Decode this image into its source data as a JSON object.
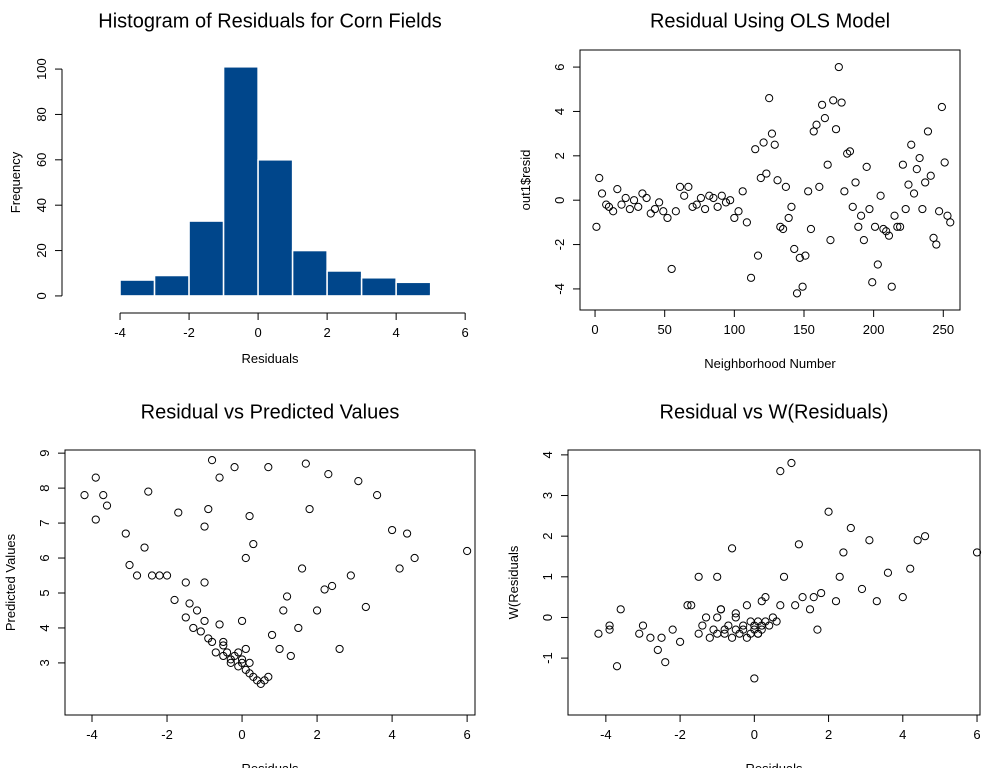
{
  "chart_data": [
    {
      "type": "histogram",
      "title": "Histogram of Residuals for Corn Fields",
      "xlabel": "Residuals",
      "ylabel": "Frequency",
      "bins": [
        -5,
        -4,
        -3,
        -2,
        -1,
        0,
        1,
        2,
        3,
        4,
        5,
        6
      ],
      "values": [
        0,
        7,
        9,
        33,
        101,
        60,
        20,
        11,
        8,
        6,
        0
      ],
      "color": "#00468b",
      "xlim": [
        -5.45,
        6.14
      ],
      "ylim": [
        -4,
        104
      ],
      "xticks": [
        -4,
        -2,
        0,
        2,
        4,
        6
      ],
      "yticks": [
        0,
        20,
        40,
        60,
        80,
        100
      ]
    },
    {
      "type": "scatter",
      "title": "Residual Using OLS Model",
      "xlabel": "Neighborhood Number",
      "ylabel": "out1$resid",
      "color": "#000000",
      "x": [
        1,
        3,
        5,
        8,
        10,
        13,
        16,
        19,
        22,
        25,
        28,
        31,
        34,
        37,
        40,
        43,
        46,
        49,
        52,
        55,
        58,
        61,
        64,
        67,
        70,
        73,
        76,
        79,
        82,
        85,
        88,
        91,
        94,
        97,
        100,
        103,
        106,
        109,
        112,
        115,
        117,
        119,
        121,
        123,
        125,
        127,
        129,
        131,
        133,
        135,
        137,
        139,
        141,
        143,
        145,
        147,
        149,
        151,
        153,
        155,
        157,
        159,
        161,
        163,
        165,
        167,
        169,
        171,
        173,
        175,
        177,
        179,
        181,
        183,
        185,
        187,
        189,
        191,
        193,
        195,
        197,
        199,
        201,
        203,
        205,
        207,
        209,
        211,
        213,
        215,
        217,
        219,
        221,
        223,
        225,
        227,
        229,
        231,
        233,
        235,
        237,
        239,
        241,
        243,
        245,
        247,
        249,
        251,
        253,
        255
      ],
      "values": [
        -1.2,
        1.0,
        0.3,
        -0.2,
        -0.3,
        -0.5,
        0.5,
        -0.2,
        0.1,
        -0.4,
        0.0,
        -0.3,
        0.3,
        0.1,
        -0.6,
        -0.4,
        -0.1,
        -0.5,
        -0.8,
        -3.1,
        -0.5,
        0.6,
        0.2,
        0.6,
        -0.3,
        -0.2,
        0.1,
        -0.4,
        0.2,
        0.1,
        -0.3,
        0.2,
        -0.1,
        0.0,
        -0.8,
        -0.5,
        0.4,
        -1.0,
        -3.5,
        2.3,
        -2.5,
        1.0,
        2.6,
        1.2,
        4.6,
        3.0,
        2.5,
        0.9,
        -1.2,
        -1.3,
        0.6,
        -0.8,
        -0.3,
        -2.2,
        -4.2,
        -2.6,
        -3.9,
        -2.5,
        0.4,
        -1.3,
        3.1,
        3.4,
        0.6,
        4.3,
        3.7,
        1.6,
        -1.8,
        4.5,
        3.2,
        6.0,
        4.4,
        0.4,
        2.1,
        2.2,
        -0.3,
        0.8,
        -1.2,
        -0.7,
        -1.8,
        1.5,
        -0.4,
        -3.7,
        -1.2,
        -2.9,
        0.2,
        -1.3,
        -1.4,
        -1.6,
        -3.9,
        -0.7,
        -1.2,
        -1.2,
        1.6,
        -0.4,
        0.7,
        2.5,
        0.3,
        1.4,
        1.9,
        -0.4,
        0.8,
        3.1,
        1.1,
        -1.7,
        -2.0,
        -0.5,
        4.2,
        1.7,
        -0.7,
        -1.0
      ],
      "xlim": [
        -10.8,
        262
      ],
      "ylim": [
        -4.95,
        6.77
      ],
      "xticks": [
        0,
        50,
        100,
        150,
        200,
        250
      ],
      "yticks": [
        -4,
        -2,
        0,
        2,
        4,
        6
      ]
    },
    {
      "type": "scatter",
      "title": "Residual vs Predicted Values",
      "xlabel": "Residuals",
      "ylabel": "Predicted Values",
      "color": "#000000",
      "x": [
        -4.2,
        -3.9,
        -3.7,
        -3.6,
        -3.9,
        -3.1,
        -3.0,
        -2.5,
        -2.6,
        -2.4,
        -2.2,
        -2.0,
        -1.8,
        -1.7,
        -1.5,
        -1.4,
        -1.3,
        -1.2,
        -1.1,
        -1.0,
        -1.0,
        -0.9,
        -0.8,
        -0.8,
        -0.7,
        -0.6,
        -0.5,
        -0.5,
        -0.4,
        -0.3,
        -0.3,
        -0.2,
        -0.1,
        -0.1,
        0.0,
        0.0,
        0.1,
        0.1,
        0.2,
        0.2,
        0.3,
        0.3,
        0.4,
        0.5,
        0.6,
        0.7,
        0.8,
        1.0,
        1.1,
        1.2,
        1.3,
        1.5,
        1.6,
        1.8,
        2.0,
        2.2,
        2.4,
        2.6,
        2.9,
        3.1,
        3.3,
        3.6,
        4.0,
        4.2,
        4.4,
        4.6,
        6.0,
        -1.0,
        -0.6,
        -0.2,
        0.1,
        0.0,
        -0.5,
        1.7,
        2.3,
        -1.5,
        0.7,
        -2.8,
        -0.9,
        0.2
      ],
      "values": [
        7.8,
        8.3,
        7.8,
        7.5,
        7.1,
        6.7,
        5.8,
        7.9,
        6.3,
        5.5,
        5.5,
        5.5,
        4.8,
        7.3,
        4.3,
        4.7,
        4.0,
        4.5,
        3.9,
        5.3,
        4.2,
        3.7,
        8.8,
        3.6,
        3.3,
        4.1,
        3.2,
        3.5,
        3.3,
        3.1,
        3.0,
        3.2,
        2.9,
        3.3,
        3.0,
        3.1,
        2.8,
        3.4,
        2.7,
        3.0,
        2.6,
        6.4,
        2.5,
        2.4,
        2.5,
        2.6,
        3.8,
        3.4,
        4.5,
        4.9,
        3.2,
        4.0,
        5.7,
        7.4,
        4.5,
        5.1,
        5.2,
        3.4,
        5.5,
        8.2,
        4.6,
        7.8,
        6.8,
        5.7,
        6.7,
        6.0,
        6.2,
        6.9,
        8.3,
        8.6,
        6.0,
        4.2,
        3.6,
        8.7,
        8.4,
        5.3,
        8.6,
        5.5,
        7.4,
        7.2
      ],
      "xlim": [
        -4.72,
        6.21
      ],
      "ylim": [
        1.51,
        9.09
      ],
      "xticks": [
        -4,
        -2,
        0,
        2,
        4,
        6
      ],
      "yticks": [
        3,
        4,
        5,
        6,
        7,
        8,
        9
      ]
    },
    {
      "type": "scatter",
      "title": "Residual vs W(Residuals)",
      "xlabel": "Residuals",
      "ylabel": "W(Residuals",
      "color": "#000000",
      "x": [
        -4.2,
        -3.9,
        -3.7,
        -3.6,
        -3.9,
        -3.1,
        -3.0,
        -2.5,
        -2.6,
        -2.4,
        -2.2,
        -2.0,
        -1.8,
        -1.7,
        -1.5,
        -1.4,
        -1.3,
        -1.2,
        -1.1,
        -1.0,
        -1.0,
        -0.9,
        -0.8,
        -0.8,
        -0.7,
        -0.6,
        -0.5,
        -0.5,
        -0.4,
        -0.3,
        -0.3,
        -0.2,
        -0.1,
        -0.1,
        0.0,
        0.0,
        0.1,
        0.1,
        0.2,
        0.2,
        0.3,
        0.3,
        0.4,
        0.5,
        0.6,
        0.7,
        0.8,
        1.0,
        1.1,
        1.2,
        1.3,
        1.5,
        1.6,
        1.8,
        2.0,
        2.2,
        2.4,
        2.6,
        2.9,
        3.1,
        3.3,
        3.6,
        4.0,
        4.2,
        4.4,
        4.6,
        6.0,
        -1.0,
        -0.6,
        -0.2,
        0.1,
        0.0,
        -0.5,
        1.7,
        2.3,
        -1.5,
        0.7,
        -2.8,
        -0.9,
        0.2
      ],
      "values": [
        -0.4,
        -0.2,
        -1.2,
        0.2,
        -0.3,
        -0.4,
        -0.2,
        -0.5,
        -0.8,
        -1.1,
        -0.3,
        -0.6,
        0.3,
        0.3,
        -0.4,
        -0.2,
        0.0,
        -0.5,
        -0.3,
        1.0,
        -0.4,
        0.2,
        -0.4,
        -0.3,
        -0.2,
        -0.5,
        -0.3,
        0.0,
        -0.4,
        -0.2,
        -0.3,
        -0.5,
        -0.1,
        -0.4,
        -0.3,
        -0.2,
        -0.4,
        -0.1,
        -0.2,
        -0.3,
        -0.1,
        0.5,
        -0.2,
        0.0,
        -0.1,
        0.3,
        1.0,
        3.8,
        0.3,
        1.8,
        0.5,
        0.2,
        0.5,
        0.6,
        2.6,
        0.4,
        1.6,
        2.2,
        0.7,
        1.9,
        0.4,
        1.1,
        0.5,
        1.2,
        1.9,
        2.0,
        1.6,
        0.0,
        1.7,
        0.3,
        -0.4,
        -1.5,
        0.1,
        -0.3,
        1.0,
        1.0,
        3.6,
        -0.5,
        0.2,
        0.4
      ],
      "xlim": [
        -5.02,
        6.08
      ],
      "ylim": [
        -2.4,
        4.12
      ],
      "xticks": [
        -4,
        -2,
        0,
        2,
        4,
        6
      ],
      "yticks": [
        -1,
        0,
        1,
        2,
        3,
        4
      ]
    }
  ]
}
